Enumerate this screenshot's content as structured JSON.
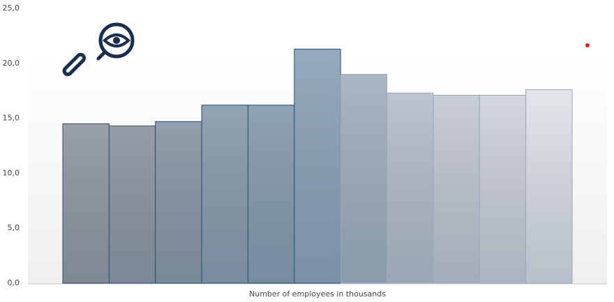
{
  "chart_data": {
    "type": "bar",
    "x_label": "Number of employees in thousands",
    "categories": [
      null,
      null,
      null,
      null,
      null,
      null,
      null,
      null,
      null,
      null,
      null
    ],
    "values": [
      14.5,
      14.3,
      14.7,
      16.2,
      16.2,
      21.3,
      19.0,
      17.3,
      17.1,
      17.1,
      17.6
    ],
    "colors": [
      "#9aa0a8",
      "#959ea8",
      "#929eab",
      "#93a3b3",
      "#8fa3b6",
      "#96aabf",
      "#a9b6c4",
      "#bcc5cf",
      "#c9ced6",
      "#d3d7de",
      "#e3e6eb"
    ],
    "ylim": [
      0,
      25
    ],
    "yticks": [
      {
        "value": 0,
        "label": "0,0"
      },
      {
        "value": 5,
        "label": "5,0"
      },
      {
        "value": 10,
        "label": "10,0"
      },
      {
        "value": 15,
        "label": "15,0"
      },
      {
        "value": 20,
        "label": "20,0"
      },
      {
        "value": 25,
        "label": "25,0"
      }
    ]
  }
}
